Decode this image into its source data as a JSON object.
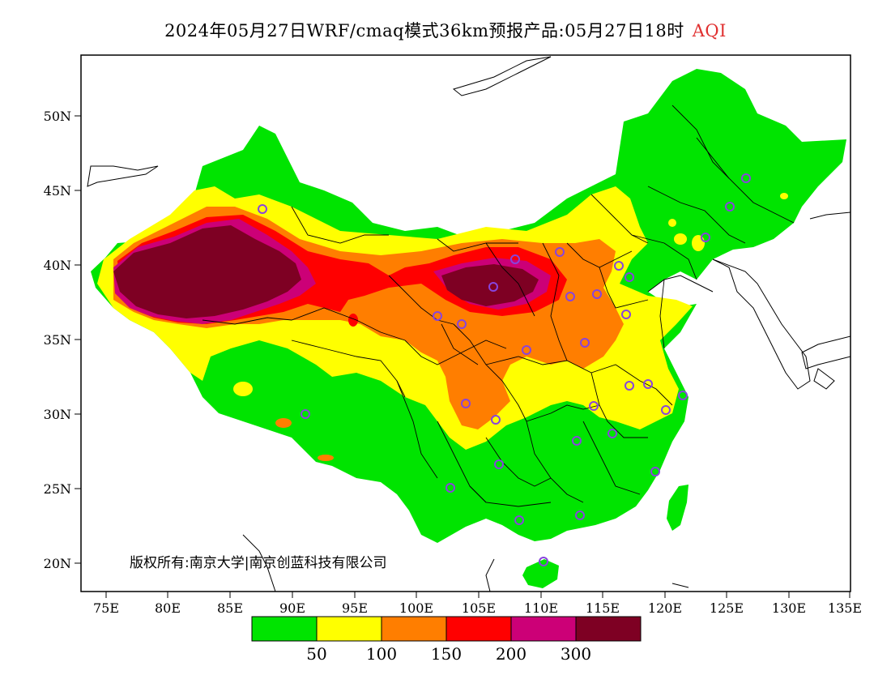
{
  "title": "2024年05月27日WRF/cmaq模式36km预报产品:05月27日18时",
  "title_variable": "AQI",
  "copyright": "版权所有:南京大学|南京创蓝科技有限公司",
  "colors": {
    "good": "#00e400",
    "moderate": "#ffff00",
    "sensitive": "#ff7e00",
    "unhealthy": "#ff0000",
    "very_unhealthy": "#cc0077",
    "hazardous": "#7e0023",
    "station_marker": "#8844dd"
  },
  "map": {
    "lat_ticks": [
      "50N",
      "45N",
      "40N",
      "35N",
      "30N",
      "25N",
      "20N"
    ],
    "lon_ticks": [
      "75E",
      "80E",
      "85E",
      "90E",
      "95E",
      "100E",
      "105E",
      "110E",
      "115E",
      "120E",
      "125E",
      "130E",
      "135E"
    ]
  },
  "legend": {
    "swatches": [
      "#00e400",
      "#ffff00",
      "#ff7e00",
      "#ff0000",
      "#cc0077",
      "#7e0023"
    ],
    "labels": [
      "50",
      "100",
      "150",
      "200",
      "300"
    ]
  }
}
